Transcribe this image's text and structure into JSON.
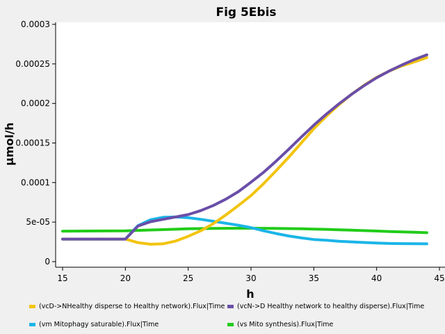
{
  "chart_data": {
    "type": "line",
    "title": "Fig 5Ebis",
    "xlabel": "h",
    "ylabel": "µmol/h",
    "xlim": [
      15,
      45
    ],
    "ylim": [
      0,
      0.0003
    ],
    "xticks": [
      15,
      20,
      25,
      30,
      35,
      40,
      45
    ],
    "xtick_labels": [
      "15",
      "20",
      "25",
      "30",
      "35",
      "40",
      "45"
    ],
    "yticks": [
      0,
      5e-05,
      0.0001,
      0.00015,
      0.0002,
      0.00025,
      0.0003
    ],
    "ytick_labels": [
      "0",
      "5e-05",
      "0.0001",
      "0.00015",
      "0.0002",
      "0.00025",
      "0.0003"
    ],
    "grid": false,
    "legend_position": "bottom",
    "series": [
      {
        "name": "(vcD->NHealthy disperse to Healthy network).Flux|Time",
        "color": "#f2c40f",
        "x": [
          15,
          20,
          21,
          22,
          23,
          24,
          25,
          26,
          27,
          28,
          29,
          30,
          31,
          32,
          33,
          34,
          35,
          36,
          37,
          38,
          39,
          40,
          41,
          42,
          43,
          44
        ],
        "y": [
          2.85e-05,
          2.85e-05,
          2.4e-05,
          2.2e-05,
          2.25e-05,
          2.6e-05,
          3.2e-05,
          3.9e-05,
          4.8e-05,
          5.9e-05,
          7.1e-05,
          8.35e-05,
          9.85e-05,
          0.000115,
          0.000132,
          0.00015,
          0.000168,
          0.000184,
          0.0001985,
          0.0002115,
          0.000223,
          0.000233,
          0.000241,
          0.0002475,
          0.0002525,
          0.000258
        ]
      },
      {
        "name": "(vcN->D Healthy network to healthy disperse).Flux|Time",
        "color": "#6a4ea8",
        "x": [
          15,
          20,
          21,
          22,
          23,
          24,
          25,
          26,
          27,
          28,
          29,
          30,
          31,
          32,
          33,
          34,
          35,
          36,
          37,
          38,
          39,
          40,
          41,
          42,
          43,
          44
        ],
        "y": [
          2.85e-05,
          2.85e-05,
          4.5e-05,
          5.05e-05,
          5.35e-05,
          5.65e-05,
          5.95e-05,
          6.45e-05,
          7.1e-05,
          7.9e-05,
          8.85e-05,
          0.0001005,
          0.000113,
          0.000127,
          0.000142,
          0.0001575,
          0.0001725,
          0.0001865,
          0.0001995,
          0.0002115,
          0.0002225,
          0.0002325,
          0.000241,
          0.0002485,
          0.0002555,
          0.0002615
        ]
      },
      {
        "name": "(vm Mitophagy saturable).Flux|Time",
        "color": "#1bb5e8",
        "x": [
          15,
          20,
          21,
          22,
          23,
          24,
          25,
          26,
          27,
          28,
          29,
          30,
          31,
          32,
          33,
          34,
          35,
          36,
          37,
          38,
          39,
          40,
          41,
          42,
          43,
          44
        ],
        "y": [
          2.85e-05,
          2.85e-05,
          4.55e-05,
          5.3e-05,
          5.6e-05,
          5.65e-05,
          5.55e-05,
          5.35e-05,
          5.1e-05,
          4.85e-05,
          4.6e-05,
          4.3e-05,
          3.9e-05,
          3.55e-05,
          3.25e-05,
          3e-05,
          2.8e-05,
          2.7e-05,
          2.58e-05,
          2.5e-05,
          2.42e-05,
          2.36e-05,
          2.3e-05,
          2.28e-05,
          2.26e-05,
          2.25e-05
        ]
      },
      {
        "name": "(vs Mito synthesis).Flux|Time",
        "color": "#22cc1a",
        "x": [
          15,
          20,
          21,
          22,
          23,
          24,
          25,
          26,
          27,
          28,
          29,
          30,
          31,
          32,
          33,
          34,
          35,
          36,
          37,
          38,
          39,
          40,
          41,
          42,
          43,
          44
        ],
        "y": [
          3.85e-05,
          3.9e-05,
          3.95e-05,
          4e-05,
          4.05e-05,
          4.1e-05,
          4.15e-05,
          4.18e-05,
          4.2e-05,
          4.21e-05,
          4.22e-05,
          4.22e-05,
          4.21e-05,
          4.2e-05,
          4.18e-05,
          4.15e-05,
          4.12e-05,
          4.08e-05,
          4.03e-05,
          3.98e-05,
          3.92e-05,
          3.87e-05,
          3.81e-05,
          3.76e-05,
          3.71e-05,
          3.66e-05
        ]
      }
    ]
  }
}
